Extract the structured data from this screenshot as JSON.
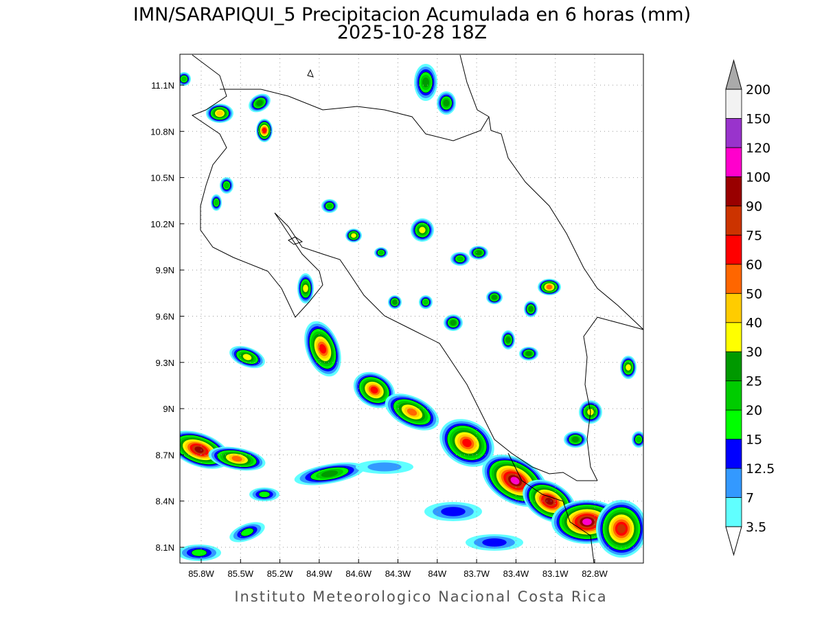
{
  "title": "IMN/SARAPIQUI_5 Precipitacion Acumulada en 6 horas (mm)",
  "subtitle": "2025-10-28 18Z",
  "map": {
    "lat_labels": [
      "11.1N",
      "10.8N",
      "10.5N",
      "10.2N",
      "9.9N",
      "9.6N",
      "9.3N",
      "9N",
      "8.7N",
      "8.4N",
      "8.1N"
    ],
    "lon_labels": [
      "85.8W",
      "85.5W",
      "85.2W",
      "84.9W",
      "84.6W",
      "84.3W",
      "84W",
      "83.7W",
      "83.4W",
      "83.1W",
      "82.8W"
    ]
  },
  "colorbar": {
    "levels": [
      3.5,
      7,
      12.5,
      15,
      20,
      25,
      30,
      40,
      50,
      60,
      75,
      90,
      100,
      120,
      150,
      200
    ],
    "colors": [
      "#60ffff",
      "#3399ff",
      "#0000ff",
      "#00ff00",
      "#00cc00",
      "#009900",
      "#ffff00",
      "#ffcc00",
      "#ff6600",
      "#ff0000",
      "#cc3300",
      "#990000",
      "#ff00cc",
      "#9933cc",
      "#f2f2f2"
    ],
    "under_color": "#ffffff",
    "over_color": "#aaaaaa"
  },
  "footer": "Instituto Meteorologico Nacional Costa Rica"
}
